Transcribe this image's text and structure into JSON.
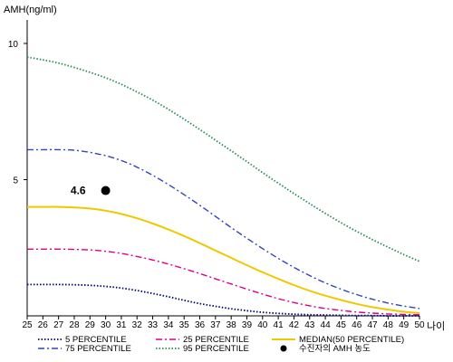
{
  "chart_data": {
    "type": "line",
    "ylabel": "AMH(ng/ml)",
    "xlabel": "나이",
    "xlim": [
      25,
      50
    ],
    "ylim": [
      0,
      11
    ],
    "x_ticks": [
      25,
      26,
      27,
      28,
      29,
      30,
      31,
      32,
      33,
      34,
      35,
      36,
      37,
      38,
      39,
      40,
      41,
      42,
      43,
      44,
      45,
      46,
      47,
      48,
      49,
      50
    ],
    "y_ticks": [
      5,
      10
    ],
    "grid": false,
    "x": [
      25,
      26,
      27,
      28,
      29,
      30,
      31,
      32,
      33,
      34,
      35,
      36,
      37,
      38,
      39,
      40,
      41,
      42,
      43,
      44,
      45,
      46,
      47,
      48,
      49,
      50
    ],
    "series": [
      {
        "name": "5 PERCENTILE",
        "color": "#000080",
        "dash": "dotted",
        "values": [
          1.15,
          1.15,
          1.15,
          1.14,
          1.12,
          1.08,
          1.02,
          0.93,
          0.82,
          0.7,
          0.57,
          0.45,
          0.35,
          0.26,
          0.19,
          0.13,
          0.09,
          0.06,
          0.04,
          0.03,
          0.02,
          0.01,
          0.01,
          0.0,
          0.0,
          0.0
        ]
      },
      {
        "name": "25 PERCENTILE",
        "color": "#dd0088",
        "dash": "dash-dot",
        "values": [
          2.45,
          2.45,
          2.45,
          2.44,
          2.42,
          2.37,
          2.29,
          2.18,
          2.05,
          1.9,
          1.73,
          1.55,
          1.36,
          1.17,
          0.98,
          0.8,
          0.63,
          0.49,
          0.37,
          0.27,
          0.2,
          0.14,
          0.1,
          0.07,
          0.05,
          0.04
        ]
      },
      {
        "name": "MEDIAN(50 PERCENTILE)",
        "color": "#f0c800",
        "dash": "solid",
        "values": [
          4.0,
          4.0,
          4.0,
          3.98,
          3.94,
          3.86,
          3.74,
          3.58,
          3.39,
          3.17,
          2.93,
          2.67,
          2.4,
          2.13,
          1.86,
          1.6,
          1.36,
          1.13,
          0.92,
          0.74,
          0.58,
          0.44,
          0.32,
          0.23,
          0.15,
          0.1
        ]
      },
      {
        "name": "75 PERCENTILE",
        "color": "#3344bb",
        "dash": "dash-dot",
        "values": [
          6.1,
          6.1,
          6.1,
          6.08,
          6.0,
          5.88,
          5.7,
          5.46,
          5.16,
          4.82,
          4.45,
          4.06,
          3.65,
          3.24,
          2.85,
          2.47,
          2.11,
          1.78,
          1.48,
          1.21,
          0.98,
          0.78,
          0.61,
          0.47,
          0.36,
          0.27
        ]
      },
      {
        "name": "95 PERCENTILE",
        "color": "#2e8b57",
        "dash": "dotted",
        "values": [
          9.5,
          9.4,
          9.28,
          9.12,
          8.94,
          8.74,
          8.5,
          8.22,
          7.92,
          7.58,
          7.22,
          6.84,
          6.45,
          6.06,
          5.66,
          5.26,
          4.87,
          4.49,
          4.12,
          3.76,
          3.42,
          3.1,
          2.8,
          2.52,
          2.25,
          2.0
        ]
      }
    ],
    "point": {
      "name": "수진자의 AMH 농도",
      "x": 30,
      "y": 4.6,
      "label": "4.6"
    }
  }
}
